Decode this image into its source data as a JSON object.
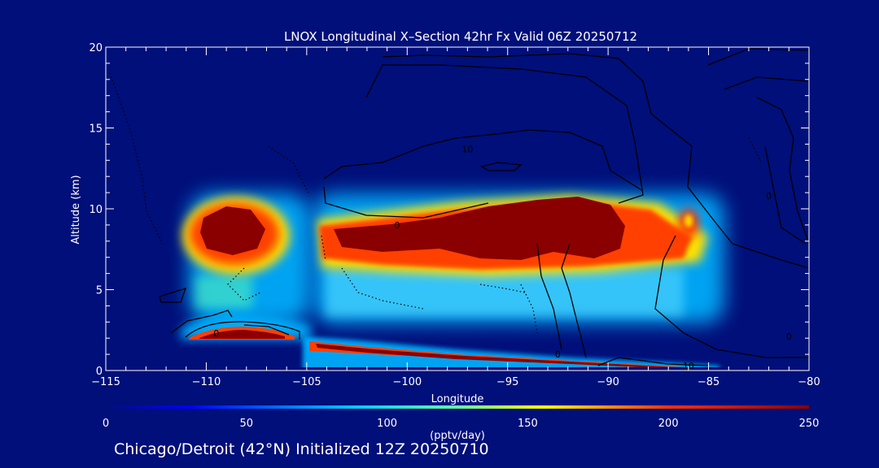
{
  "chart_data": {
    "type": "heatmap",
    "title": "LNOX Longitudinal X–Section 42hr  Fx Valid 06Z 20250712",
    "xlabel": "Longitude",
    "ylabel": "Altitude (km)",
    "xlim": [
      -115,
      -80
    ],
    "ylim": [
      0,
      20
    ],
    "x_ticks": [
      -115,
      -110,
      -105,
      -100,
      -95,
      -90,
      -85,
      -80
    ],
    "x_tick_labels": [
      "−115",
      "−110",
      "−105",
      "−100",
      "−95",
      "−90",
      "−85",
      "−80"
    ],
    "y_ticks": [
      0,
      5,
      10,
      15,
      20
    ],
    "y_tick_labels": [
      "0",
      "5",
      "10",
      "15",
      "20"
    ],
    "colorbar": {
      "min": 0,
      "max": 250,
      "ticks": [
        0,
        50,
        100,
        150,
        200,
        250
      ],
      "tick_labels": [
        "0",
        "50",
        "100",
        "150",
        "200",
        "250"
      ],
      "label": "(pptv/day)",
      "colormap": "jet"
    },
    "lnox_regions": [
      {
        "lon": -109.0,
        "alt": 8.5,
        "value": 250
      },
      {
        "lon": -102.0,
        "alt": 8.3,
        "value": 250
      },
      {
        "lon": -95.0,
        "alt": 8.8,
        "value": 250
      },
      {
        "lon": -91.0,
        "alt": 9.5,
        "value": 250
      },
      {
        "lon": -86.0,
        "alt": 9.0,
        "value": 200
      },
      {
        "lon": -109.0,
        "alt": 2.3,
        "value": 250
      },
      {
        "lon": -96.0,
        "alt": 0.8,
        "value": 250
      },
      {
        "lon": -100.0,
        "alt": 4.5,
        "value": 70
      },
      {
        "lon": -109.5,
        "alt": 5.0,
        "value": 70
      }
    ],
    "contour_labels": [
      {
        "lon": -100.5,
        "alt": 9.0,
        "text": "0"
      },
      {
        "lon": -97.0,
        "alt": 13.7,
        "text": "10"
      },
      {
        "lon": -109.5,
        "alt": 2.3,
        "text": "0"
      },
      {
        "lon": -92.5,
        "alt": 1.0,
        "text": "0"
      },
      {
        "lon": -86.0,
        "alt": 0.3,
        "text": "10"
      },
      {
        "lon": -82.0,
        "alt": 10.8,
        "text": "0"
      },
      {
        "lon": -81.0,
        "alt": 2.1,
        "text": "0"
      }
    ]
  },
  "footer_text": "Chicago/Detroit (42°N) Initialized 12Z 20250710"
}
